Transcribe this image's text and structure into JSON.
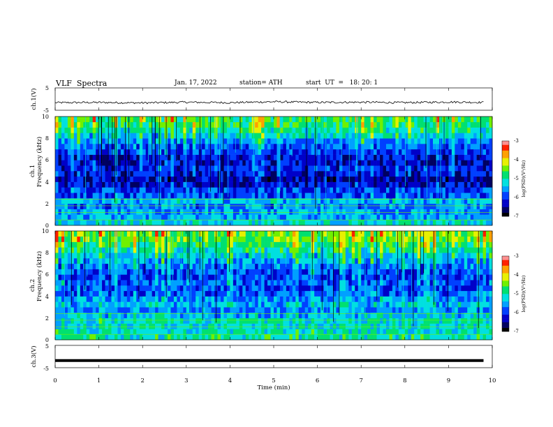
{
  "header": {
    "title": "VLF  Spectra",
    "date": "Jan. 17, 2022",
    "station": "station= ATH",
    "start_ut": "start  UT  =   18: 20: 1"
  },
  "panels": {
    "ch1": {
      "label": "ch.1(V)",
      "ticks": [
        "5",
        "-5"
      ],
      "range": [
        -5,
        5
      ]
    },
    "spec1": {
      "label": "ch.1",
      "ylabel": "Frequency  (kHz)",
      "ticks": [
        "0",
        "2",
        "4",
        "6",
        "8",
        "10"
      ],
      "range": [
        0,
        10
      ]
    },
    "spec2": {
      "label": "ch.2",
      "ylabel": "Frequency  (kHz)",
      "ticks": [
        "0",
        "2",
        "4",
        "6",
        "8",
        "10"
      ],
      "range": [
        0,
        10
      ]
    },
    "ch3": {
      "label": "ch.3(V)",
      "ticks": [
        "5",
        "-5"
      ],
      "range": [
        -5,
        5
      ]
    }
  },
  "xaxis": {
    "label": "Time  (min)",
    "ticks": [
      "0",
      "1",
      "2",
      "3",
      "4",
      "5",
      "6",
      "7",
      "8",
      "9",
      "10"
    ],
    "range": [
      0,
      10
    ]
  },
  "colorbar": {
    "label": "log(PSD)(V²/Hz)",
    "ticks": [
      "-3",
      "-4",
      "-5",
      "-6",
      "-7"
    ],
    "range": [
      -7,
      -3
    ]
  },
  "colors": {
    "colormap": [
      "#000000",
      "#000060",
      "#0000c8",
      "#0040ff",
      "#00a0ff",
      "#00e0e0",
      "#00e070",
      "#70f000",
      "#e8f000",
      "#ffa000",
      "#ff2000",
      "#ff9090"
    ],
    "trace": "#000000"
  },
  "chart_data": [
    {
      "type": "line",
      "title": "ch.1(V)",
      "xlabel": "Time  (min)",
      "ylabel": "ch.1(V)",
      "xlim": [
        0,
        9.8
      ],
      "ylim": [
        -5,
        5
      ],
      "description_values": {
        "mean": -1.5,
        "amplitude": 0.5
      },
      "series": [
        {
          "name": "ch.1",
          "x": [
            0,
            1,
            2,
            3,
            4,
            5,
            6,
            7,
            8,
            9,
            9.8
          ],
          "y": [
            -1.6,
            -1.5,
            -1.7,
            -1.4,
            -1.6,
            -1.2,
            -1.5,
            -1.4,
            -1.6,
            -1.3,
            -1.5
          ]
        }
      ]
    },
    {
      "type": "heatmap",
      "title": "ch.1",
      "xlabel": "Time  (min)",
      "ylabel": "Frequency  (kHz)",
      "xlim": [
        0,
        10
      ],
      "ylim": [
        0,
        10
      ],
      "zlim": [
        -7,
        -3
      ],
      "freq_khz": [
        0.25,
        0.75,
        1.25,
        1.75,
        2.25,
        2.75,
        3.25,
        3.75,
        4.25,
        4.75,
        5.25,
        5.75,
        6.25,
        6.75,
        7.25,
        7.75,
        8.25,
        8.75,
        9.25,
        9.75
      ],
      "mean_log_psd": [
        -5.2,
        -5.5,
        -5.6,
        -5.7,
        -5.4,
        -5.9,
        -6.0,
        -6.3,
        -6.4,
        -6.2,
        -6.1,
        -6.3,
        -6.2,
        -6.0,
        -5.8,
        -5.6,
        -5.3,
        -5.0,
        -4.8,
        -4.7
      ]
    },
    {
      "type": "heatmap",
      "title": "ch.2",
      "xlabel": "Time  (min)",
      "ylabel": "Frequency  (kHz)",
      "xlim": [
        0,
        10
      ],
      "ylim": [
        0,
        10
      ],
      "zlim": [
        -7,
        -3
      ],
      "freq_khz": [
        0.25,
        0.75,
        1.25,
        1.75,
        2.25,
        2.75,
        3.25,
        3.75,
        4.25,
        4.75,
        5.25,
        5.75,
        6.25,
        6.75,
        7.25,
        7.75,
        8.25,
        8.75,
        9.25,
        9.75
      ],
      "mean_log_psd": [
        -5.0,
        -5.1,
        -5.2,
        -5.1,
        -5.4,
        -5.6,
        -5.4,
        -5.6,
        -5.8,
        -5.9,
        -5.8,
        -6.0,
        -5.9,
        -5.7,
        -5.5,
        -5.3,
        -5.0,
        -4.8,
        -4.6,
        -4.5
      ]
    },
    {
      "type": "line",
      "title": "ch.3(V)",
      "xlabel": "Time  (min)",
      "ylabel": "ch.3(V)",
      "xlim": [
        0,
        9.8
      ],
      "ylim": [
        -5,
        5
      ],
      "series": [
        {
          "name": "ch.3",
          "x": [
            0,
            9.8
          ],
          "y": [
            -1.8,
            -1.8
          ]
        }
      ]
    }
  ]
}
